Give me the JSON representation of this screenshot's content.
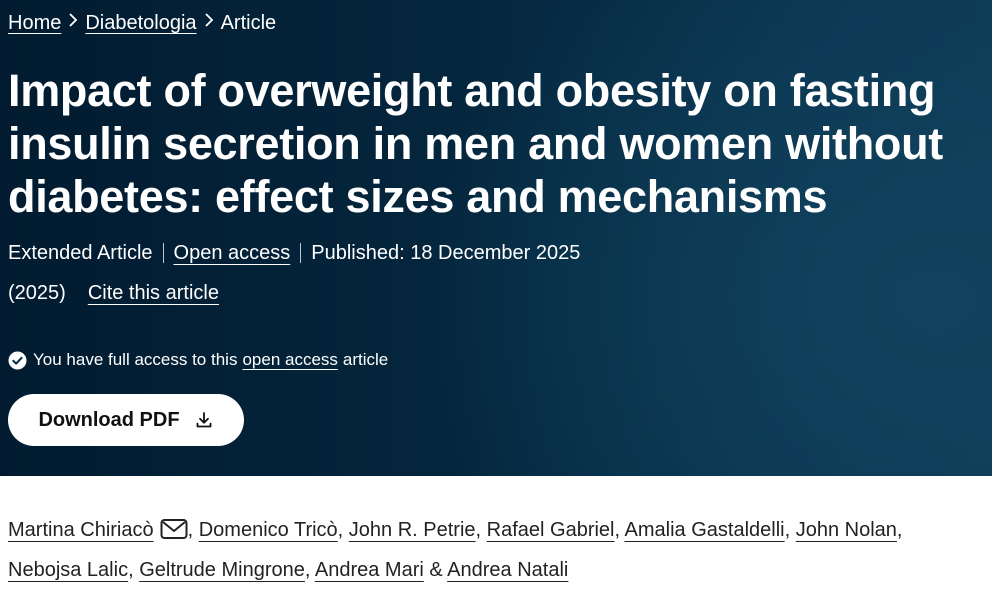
{
  "breadcrumb": {
    "home": "Home",
    "journal": "Diabetologia",
    "current": "Article",
    "separator": ">"
  },
  "article": {
    "title": "Impact of overweight and obesity on fasting insulin secretion in men and women without diabetes: effect sizes and mechanisms",
    "type": "Extended Article",
    "access_label": "Open access",
    "published": "Published: 18 December 2025",
    "year": "(2025)",
    "cite_label": "Cite this article"
  },
  "access_notice": {
    "prefix": "You have full access to this",
    "link": "open access",
    "suffix": "article",
    "icon": "check-circle-icon"
  },
  "download": {
    "label": "Download PDF",
    "icon": "download-icon"
  },
  "authors": {
    "names": [
      "Martina Chiriacò",
      "Domenico Tricò",
      "John R. Petrie",
      "Rafael Gabriel",
      "Amalia Gastaldelli",
      "John Nolan",
      "Nebojsa Lalic",
      "Geltrude Mingrone",
      "Andrea Mari",
      "Andrea Natali"
    ],
    "comma": ",",
    "ampersand": "&",
    "contact_icon": "mail-icon"
  },
  "colors": {
    "hero_background": "#042439",
    "hero_text": "#ffffff",
    "button_background": "#ffffff",
    "body_text": "#222222"
  }
}
